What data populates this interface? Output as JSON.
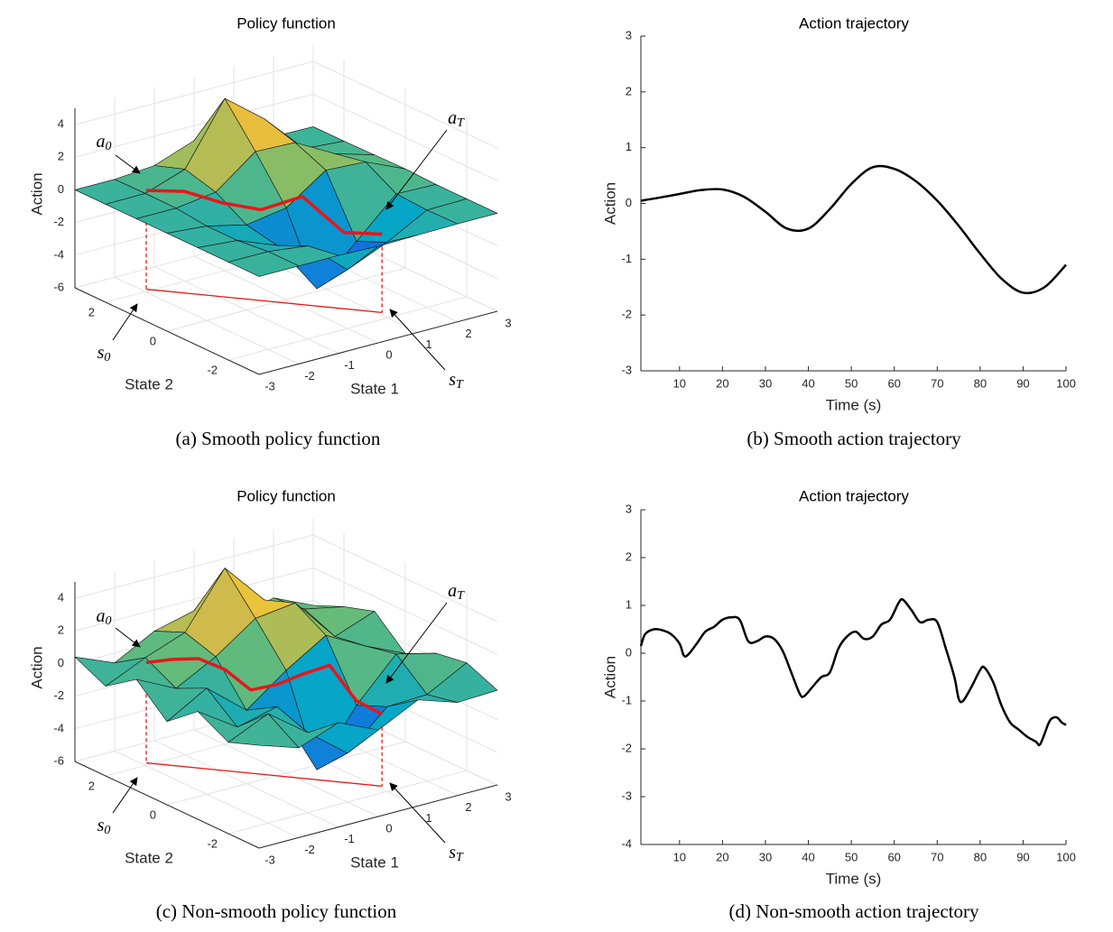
{
  "chart_data": [
    {
      "type": "surface",
      "title": "Policy function",
      "xlabel": "State 1",
      "ylabel": "State 2",
      "zlabel": "Action",
      "xlim": [
        -3,
        3
      ],
      "xticks": [
        -3,
        -2,
        -1,
        0,
        1,
        2,
        3
      ],
      "ylim": [
        -3,
        3
      ],
      "yticks": [
        -2,
        0,
        2
      ],
      "zlim": [
        -6,
        5
      ],
      "zticks": [
        -6,
        -4,
        -2,
        0,
        2,
        4
      ],
      "grid": true,
      "x": [
        -3,
        -2,
        -1,
        0,
        1,
        2,
        3
      ],
      "y": [
        -3,
        -2,
        -1,
        0,
        1,
        2,
        3
      ],
      "z": [
        [
          0,
          0,
          0,
          -0.08,
          -0.04,
          0,
          0
        ],
        [
          0,
          0,
          -0.3,
          -2.4,
          -1.36,
          -0.04,
          0
        ],
        [
          0,
          -0.21,
          -1.16,
          -4.45,
          -2.2,
          0.07,
          0
        ],
        [
          0,
          -0.21,
          -0.78,
          -0.39,
          1.28,
          1.14,
          0.07
        ],
        [
          0,
          0,
          0.34,
          2.18,
          2.09,
          0.76,
          0.04
        ],
        [
          0,
          0.02,
          0.86,
          4.55,
          2.65,
          0.19,
          0
        ],
        [
          0,
          0,
          0.2,
          1.08,
          0.62,
          0.04,
          0
        ]
      ],
      "trajectory": {
        "color": "#e8161b",
        "s1": [
          -1.9,
          -1.4,
          -0.9,
          -0.4,
          0.1,
          0.6,
          1.1
        ],
        "s2": [
          2.1,
          1.5,
          0.9,
          0.3,
          -0.4,
          -1.1,
          -1.7
        ],
        "a": [
          0.05,
          0.2,
          -0.3,
          -0.5,
          0.6,
          -1.3,
          -1.2
        ]
      },
      "annotations": [
        {
          "text": "a",
          "sub": "0"
        },
        {
          "text": "a",
          "sub": "T"
        },
        {
          "text": "s",
          "sub": "0"
        },
        {
          "text": "s",
          "sub": "T"
        }
      ],
      "caption": "(a) Smooth policy function"
    },
    {
      "type": "line",
      "title": "Action trajectory",
      "xlabel": "Time (s)",
      "ylabel": "Action",
      "xlim": [
        1,
        100
      ],
      "xticks": [
        10,
        20,
        30,
        40,
        50,
        60,
        70,
        80,
        90,
        100
      ],
      "ylim": [
        -3,
        3
      ],
      "yticks": [
        -3,
        -2,
        -1,
        0,
        1,
        2,
        3
      ],
      "color": "#000000",
      "x": [
        1,
        5,
        10,
        15,
        20,
        25,
        30,
        35,
        40,
        45,
        50,
        55,
        60,
        65,
        70,
        75,
        80,
        85,
        90,
        95,
        100
      ],
      "values": [
        0.05,
        0.1,
        0.17,
        0.24,
        0.25,
        0.12,
        -0.15,
        -0.45,
        -0.45,
        -0.1,
        0.35,
        0.65,
        0.62,
        0.4,
        0.05,
        -0.4,
        -0.9,
        -1.35,
        -1.6,
        -1.5,
        -1.1
      ],
      "caption": "(b) Smooth action trajectory"
    },
    {
      "type": "surface",
      "title": "Policy function",
      "xlabel": "State 1",
      "ylabel": "State 2",
      "zlabel": "Action",
      "xlim": [
        -3,
        3
      ],
      "xticks": [
        -3,
        -2,
        -1,
        0,
        1,
        2,
        3
      ],
      "ylim": [
        -3,
        3
      ],
      "yticks": [
        -2,
        0,
        2
      ],
      "zlim": [
        -6,
        5
      ],
      "zticks": [
        -6,
        -4,
        -2,
        0,
        2,
        4
      ],
      "grid": true,
      "x": [
        -3,
        -2,
        -1,
        0,
        1,
        2,
        3
      ],
      "y": [
        -3,
        -2,
        -1,
        0,
        1,
        2,
        3
      ],
      "z": [
        [
          0.3,
          -0.5,
          0.4,
          -0.7,
          0.5,
          -0.3,
          -0.2
        ],
        [
          -0.4,
          0.7,
          -1.1,
          -3.0,
          -0.8,
          -0.7,
          0.6
        ],
        [
          0.6,
          -1.0,
          -0.4,
          -4.9,
          -1.6,
          0.9,
          0.3
        ],
        [
          -0.9,
          0.5,
          -1.5,
          0.3,
          1.8,
          0.5,
          -0.6
        ],
        [
          0.8,
          -0.4,
          0.9,
          2.6,
          2.9,
          0.2,
          1.1
        ],
        [
          -0.5,
          0.6,
          1.5,
          4.8,
          2.2,
          1.0,
          0.5
        ],
        [
          0.4,
          -0.6,
          0.7,
          1.3,
          0.1,
          0.8,
          -0.3
        ]
      ],
      "trajectory": {
        "color": "#e8161b",
        "s1": [
          -1.9,
          -1.57,
          -1.23,
          -0.9,
          -0.57,
          -0.23,
          0.1,
          0.43,
          0.77,
          1.1
        ],
        "s2": [
          2.1,
          1.68,
          1.26,
          0.83,
          0.41,
          -0.01,
          -0.43,
          -0.86,
          -1.28,
          -1.7
        ],
        "a": [
          0.15,
          0.5,
          0.7,
          0.2,
          -0.9,
          -0.4,
          0.4,
          1.1,
          -0.9,
          -1.6
        ]
      },
      "annotations": [
        {
          "text": "a",
          "sub": "0"
        },
        {
          "text": "a",
          "sub": "T"
        },
        {
          "text": "s",
          "sub": "0"
        },
        {
          "text": "s",
          "sub": "T"
        }
      ],
      "caption": "(c) Non-smooth policy function"
    },
    {
      "type": "line",
      "title": "Action trajectory",
      "xlabel": "Time (s)",
      "ylabel": "Action",
      "xlim": [
        1,
        100
      ],
      "xticks": [
        10,
        20,
        30,
        40,
        50,
        60,
        70,
        80,
        90,
        100
      ],
      "ylim": [
        -4,
        3
      ],
      "yticks": [
        -4,
        -3,
        -2,
        -1,
        0,
        1,
        2,
        3
      ],
      "color": "#000000",
      "x": [
        1,
        2,
        4,
        6,
        8,
        10,
        11,
        12,
        14,
        16,
        18,
        20,
        22,
        24,
        26,
        28,
        30,
        32,
        34,
        36,
        38,
        39,
        41,
        43,
        45,
        47,
        49,
        51,
        53,
        55,
        57,
        59,
        61,
        62,
        64,
        66,
        68,
        70,
        72,
        74,
        75,
        76,
        78,
        80,
        81,
        83,
        85,
        87,
        89,
        91,
        93,
        94,
        96,
        97,
        98,
        99,
        100
      ],
      "values": [
        0.15,
        0.4,
        0.5,
        0.48,
        0.4,
        0.2,
        -0.05,
        -0.03,
        0.2,
        0.45,
        0.55,
        0.7,
        0.75,
        0.7,
        0.25,
        0.25,
        0.35,
        0.3,
        0.05,
        -0.4,
        -0.85,
        -0.9,
        -0.7,
        -0.5,
        -0.4,
        0.1,
        0.35,
        0.45,
        0.3,
        0.35,
        0.6,
        0.7,
        1.05,
        1.12,
        0.9,
        0.65,
        0.7,
        0.65,
        0.1,
        -0.5,
        -0.95,
        -1.0,
        -0.7,
        -0.35,
        -0.3,
        -0.6,
        -1.1,
        -1.45,
        -1.6,
        -1.75,
        -1.85,
        -1.9,
        -1.45,
        -1.35,
        -1.35,
        -1.45,
        -1.5
      ],
      "caption": "(d) Non-smooth action trajectory"
    }
  ]
}
